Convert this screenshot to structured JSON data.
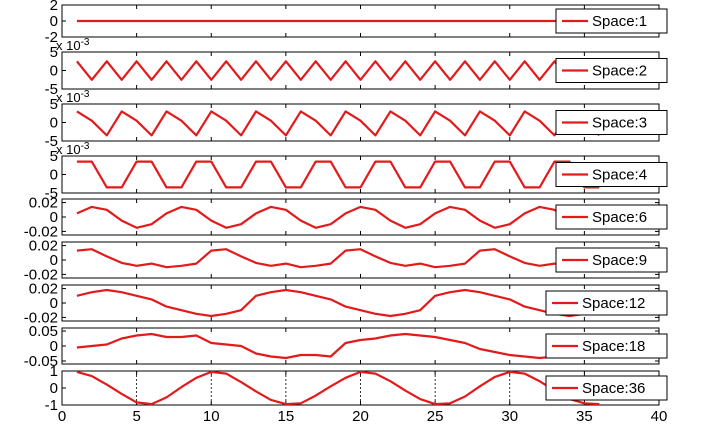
{
  "chart_data": {
    "type": "line",
    "line_color": "#e31a1c",
    "x_ticks": [
      0,
      5,
      10,
      15,
      20,
      25,
      30,
      35,
      40
    ],
    "xlim": [
      0,
      40
    ],
    "subplots": [
      {
        "name": "Space:1",
        "ylim": [
          -2,
          2
        ],
        "yticks": [
          2,
          0,
          -2
        ],
        "ytick_labels": [
          "2",
          "0",
          "-2"
        ],
        "exponent": "",
        "x": [
          1,
          2,
          3,
          4,
          5,
          6,
          7,
          8,
          9,
          10,
          11,
          12,
          13,
          14,
          15,
          16,
          17,
          18,
          19,
          20,
          21,
          22,
          23,
          24,
          25,
          26,
          27,
          28,
          29,
          30,
          31,
          32,
          33,
          34,
          35,
          36
        ],
        "y": [
          0,
          0,
          0,
          0,
          0,
          0,
          0,
          0,
          0,
          0,
          0,
          0,
          0,
          0,
          0,
          0,
          0,
          0,
          0,
          0,
          0,
          0,
          0,
          0,
          0,
          0,
          0,
          0,
          0,
          0,
          0,
          0,
          0,
          0,
          0,
          0
        ]
      },
      {
        "name": "Space:2",
        "ylim": [
          -5,
          5
        ],
        "yticks": [
          5,
          0,
          -5
        ],
        "ytick_labels": [
          "5",
          "0",
          "-5"
        ],
        "exponent": "x 10^-3",
        "x": [
          1,
          2,
          3,
          4,
          5,
          6,
          7,
          8,
          9,
          10,
          11,
          12,
          13,
          14,
          15,
          16,
          17,
          18,
          19,
          20,
          21,
          22,
          23,
          24,
          25,
          26,
          27,
          28,
          29,
          30,
          31,
          32,
          33,
          34,
          35,
          36
        ],
        "y": [
          2.5,
          -2.5,
          2.5,
          -2.5,
          2.5,
          -2.5,
          2.5,
          -2.5,
          2.5,
          -2.5,
          2.5,
          -2.5,
          2.5,
          -2.5,
          2.5,
          -2.5,
          2.5,
          -2.5,
          2.5,
          -2.5,
          2.5,
          -2.5,
          2.5,
          -2.5,
          2.5,
          -2.5,
          2.5,
          -2.5,
          2.5,
          -2.5,
          2.5,
          -2.5,
          2.5,
          -2.5,
          2.5,
          -2.5
        ]
      },
      {
        "name": "Space:3",
        "ylim": [
          -5,
          5
        ],
        "yticks": [
          5,
          0,
          -5
        ],
        "ytick_labels": [
          "5",
          "0",
          "-5"
        ],
        "exponent": "x 10^-3",
        "x": [
          1,
          2,
          3,
          4,
          5,
          6,
          7,
          8,
          9,
          10,
          11,
          12,
          13,
          14,
          15,
          16,
          17,
          18,
          19,
          20,
          21,
          22,
          23,
          24,
          25,
          26,
          27,
          28,
          29,
          30,
          31,
          32,
          33,
          34,
          35,
          36
        ],
        "y": [
          3,
          0.5,
          -3.5,
          3,
          0.5,
          -3.5,
          3,
          0.5,
          -3.5,
          3,
          0.5,
          -3.5,
          3,
          0.5,
          -3.5,
          3,
          0.5,
          -3.5,
          3,
          0.5,
          -3.5,
          3,
          0.5,
          -3.5,
          3,
          0.5,
          -3.5,
          3,
          0.5,
          -3.5,
          3,
          0.5,
          -3.5,
          3,
          0.5,
          -3.5
        ]
      },
      {
        "name": "Space:4",
        "ylim": [
          -5,
          5
        ],
        "yticks": [
          5,
          0,
          -5
        ],
        "ytick_labels": [
          "5",
          "0",
          "-5"
        ],
        "exponent": "x 10^-3",
        "x": [
          1,
          2,
          3,
          4,
          5,
          6,
          7,
          8,
          9,
          10,
          11,
          12,
          13,
          14,
          15,
          16,
          17,
          18,
          19,
          20,
          21,
          22,
          23,
          24,
          25,
          26,
          27,
          28,
          29,
          30,
          31,
          32,
          33,
          34,
          35,
          36
        ],
        "y": [
          3.5,
          3.5,
          -3.5,
          -3.5,
          3.5,
          3.5,
          -3.5,
          -3.5,
          3.5,
          3.5,
          -3.5,
          -3.5,
          3.5,
          3.5,
          -3.5,
          -3.5,
          3.5,
          3.5,
          -3.5,
          -3.5,
          3.5,
          3.5,
          -3.5,
          -3.5,
          3.5,
          3.5,
          -3.5,
          -3.5,
          3.5,
          3.5,
          -3.5,
          -3.5,
          3.5,
          3.5,
          -3.5,
          -3.5
        ]
      },
      {
        "name": "Space:6",
        "ylim": [
          -0.025,
          0.025
        ],
        "yticks": [
          0.02,
          0,
          -0.02
        ],
        "ytick_labels": [
          "0.02",
          "0",
          "-0.02"
        ],
        "exponent": "",
        "x": [
          1,
          2,
          3,
          4,
          5,
          6,
          7,
          8,
          9,
          10,
          11,
          12,
          13,
          14,
          15,
          16,
          17,
          18,
          19,
          20,
          21,
          22,
          23,
          24,
          25,
          26,
          27,
          28,
          29,
          30,
          31,
          32,
          33,
          34,
          35,
          36
        ],
        "y": [
          0.005,
          0.014,
          0.01,
          -0.005,
          -0.015,
          -0.01,
          0.005,
          0.014,
          0.01,
          -0.005,
          -0.015,
          -0.01,
          0.005,
          0.014,
          0.01,
          -0.005,
          -0.015,
          -0.01,
          0.005,
          0.014,
          0.01,
          -0.005,
          -0.015,
          -0.01,
          0.005,
          0.014,
          0.01,
          -0.005,
          -0.015,
          -0.01,
          0.005,
          0.014,
          0.01,
          -0.005,
          -0.015,
          -0.01
        ]
      },
      {
        "name": "Space:9",
        "ylim": [
          -0.025,
          0.025
        ],
        "yticks": [
          0.02,
          0,
          -0.02
        ],
        "ytick_labels": [
          "0.02",
          "0",
          "-0.02"
        ],
        "exponent": "",
        "x": [
          1,
          2,
          3,
          4,
          5,
          6,
          7,
          8,
          9,
          10,
          11,
          12,
          13,
          14,
          15,
          16,
          17,
          18,
          19,
          20,
          21,
          22,
          23,
          24,
          25,
          26,
          27,
          28,
          29,
          30,
          31,
          32,
          33,
          34,
          35,
          36
        ],
        "y": [
          0.013,
          0.015,
          0.005,
          -0.004,
          -0.008,
          -0.005,
          -0.01,
          -0.008,
          -0.005,
          0.013,
          0.015,
          0.005,
          -0.004,
          -0.008,
          -0.005,
          -0.01,
          -0.008,
          -0.005,
          0.013,
          0.015,
          0.005,
          -0.004,
          -0.008,
          -0.005,
          -0.01,
          -0.008,
          -0.005,
          0.013,
          0.015,
          0.005,
          -0.004,
          -0.008,
          -0.005,
          -0.01,
          -0.008,
          -0.005
        ]
      },
      {
        "name": "Space:12",
        "ylim": [
          -0.025,
          0.025
        ],
        "yticks": [
          0.02,
          0,
          -0.02
        ],
        "ytick_labels": [
          "0.02",
          "0",
          "-0.02"
        ],
        "exponent": "",
        "x": [
          1,
          2,
          3,
          4,
          5,
          6,
          7,
          8,
          9,
          10,
          11,
          12,
          13,
          14,
          15,
          16,
          17,
          18,
          19,
          20,
          21,
          22,
          23,
          24,
          25,
          26,
          27,
          28,
          29,
          30,
          31,
          32,
          33,
          34,
          35,
          36
        ],
        "y": [
          0.01,
          0.015,
          0.018,
          0.015,
          0.01,
          0.005,
          -0.005,
          -0.01,
          -0.015,
          -0.018,
          -0.015,
          -0.01,
          0.01,
          0.015,
          0.018,
          0.015,
          0.01,
          0.005,
          -0.005,
          -0.01,
          -0.015,
          -0.018,
          -0.015,
          -0.01,
          0.01,
          0.015,
          0.018,
          0.015,
          0.01,
          0.005,
          -0.005,
          -0.01,
          -0.015,
          -0.018,
          -0.015,
          -0.01
        ]
      },
      {
        "name": "Space:18",
        "ylim": [
          -0.06,
          0.06
        ],
        "yticks": [
          0.05,
          0,
          -0.05
        ],
        "ytick_labels": [
          "0.05",
          "0",
          "-0.05"
        ],
        "exponent": "",
        "x": [
          1,
          2,
          3,
          4,
          5,
          6,
          7,
          8,
          9,
          10,
          11,
          12,
          13,
          14,
          15,
          16,
          17,
          18,
          19,
          20,
          21,
          22,
          23,
          24,
          25,
          26,
          27,
          28,
          29,
          30,
          31,
          32,
          33,
          34,
          35,
          36
        ],
        "y": [
          -0.005,
          0,
          0.005,
          0.025,
          0.035,
          0.04,
          0.03,
          0.03,
          0.035,
          0.01,
          0.005,
          0,
          -0.025,
          -0.035,
          -0.04,
          -0.03,
          -0.03,
          -0.035,
          0.01,
          0.02,
          0.025,
          0.035,
          0.04,
          0.035,
          0.03,
          0.02,
          0.01,
          -0.01,
          -0.02,
          -0.03,
          -0.035,
          -0.04,
          -0.035,
          -0.03,
          -0.03,
          -0.035
        ]
      },
      {
        "name": "Space:36",
        "ylim": [
          -1,
          1
        ],
        "yticks": [
          1,
          0,
          -1
        ],
        "ytick_labels": [
          "1",
          "0",
          "-1"
        ],
        "exponent": "",
        "grid": true,
        "x": [
          1,
          2,
          3,
          4,
          5,
          6,
          7,
          8,
          9,
          10,
          11,
          12,
          13,
          14,
          15,
          16,
          17,
          18,
          19,
          20,
          21,
          22,
          23,
          24,
          25,
          26,
          27,
          28,
          29,
          30,
          31,
          32,
          33,
          34,
          35,
          36
        ],
        "y": [
          0.95,
          0.7,
          0.2,
          -0.35,
          -0.85,
          -0.95,
          -0.55,
          0.05,
          0.6,
          0.95,
          0.85,
          0.35,
          -0.2,
          -0.7,
          -0.95,
          -0.9,
          -0.45,
          0.1,
          0.6,
          0.95,
          0.85,
          0.4,
          -0.15,
          -0.65,
          -0.95,
          -0.9,
          -0.5,
          0.1,
          0.65,
          0.95,
          0.85,
          0.4,
          -0.15,
          -0.65,
          -0.9,
          -0.95
        ]
      }
    ]
  }
}
